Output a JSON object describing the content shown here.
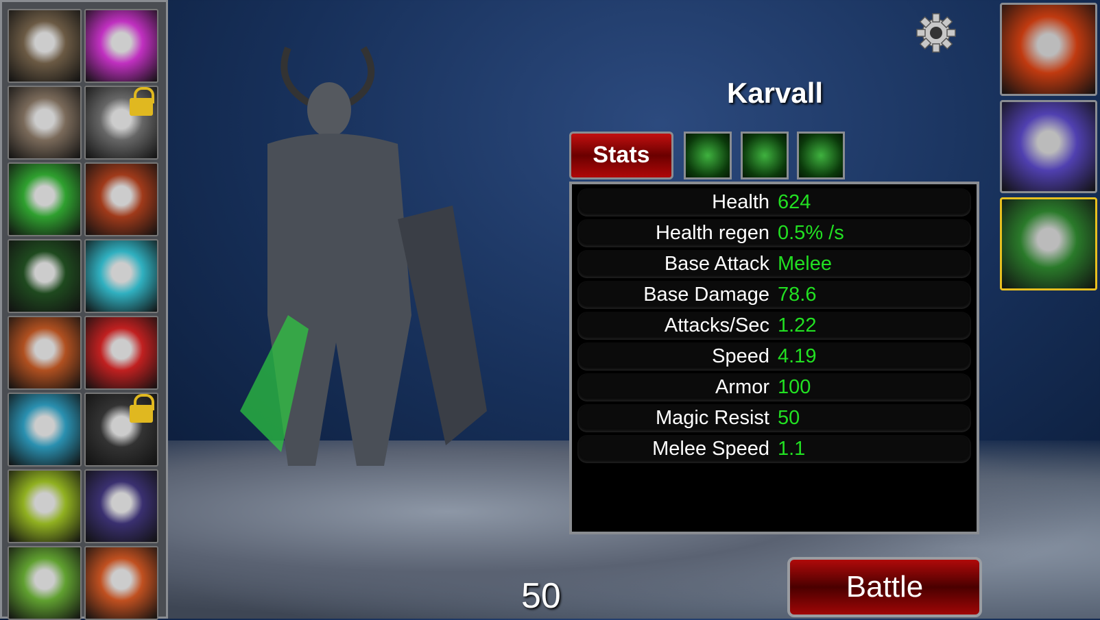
{
  "hero": {
    "name": "Karvall",
    "level": "50"
  },
  "tabs": {
    "stats": "Stats",
    "abilities": [
      "ability-1",
      "ability-2",
      "ability-3"
    ]
  },
  "stats": [
    {
      "label": "Health",
      "value": "624"
    },
    {
      "label": "Health regen",
      "value": "0.5% /s"
    },
    {
      "label": "Base Attack",
      "value": "Melee"
    },
    {
      "label": "Base Damage",
      "value": "78.6"
    },
    {
      "label": "Attacks/Sec",
      "value": "1.22"
    },
    {
      "label": "Speed",
      "value": "4.19"
    },
    {
      "label": "Armor",
      "value": "100"
    },
    {
      "label": "Magic Resist",
      "value": "50"
    },
    {
      "label": "Melee Speed",
      "value": "1.1"
    }
  ],
  "buttons": {
    "battle": "Battle"
  },
  "roster": [
    {
      "color": "#6b5a44",
      "locked": false
    },
    {
      "color": "#c030c0",
      "locked": false
    },
    {
      "color": "#7a6a5a",
      "locked": false
    },
    {
      "color": "#666666",
      "locked": true
    },
    {
      "color": "#2fa02f",
      "locked": false
    },
    {
      "color": "#a03a1a",
      "locked": false
    },
    {
      "color": "#1f4a1f",
      "locked": false
    },
    {
      "color": "#30b0c0",
      "locked": false
    },
    {
      "color": "#b05020",
      "locked": false
    },
    {
      "color": "#c02020",
      "locked": false
    },
    {
      "color": "#2a90b0",
      "locked": false
    },
    {
      "color": "#333333",
      "locked": true
    },
    {
      "color": "#90b020",
      "locked": false
    },
    {
      "color": "#3a3070",
      "locked": false
    },
    {
      "color": "#60a030",
      "locked": false
    },
    {
      "color": "#c05020",
      "locked": false
    }
  ],
  "team": [
    {
      "color": "#c03a10",
      "selected": false
    },
    {
      "color": "#5040b0",
      "selected": false
    },
    {
      "color": "#2a7a2a",
      "selected": true
    }
  ],
  "colors": {
    "value": "#22e022",
    "tab": "#c21010"
  }
}
